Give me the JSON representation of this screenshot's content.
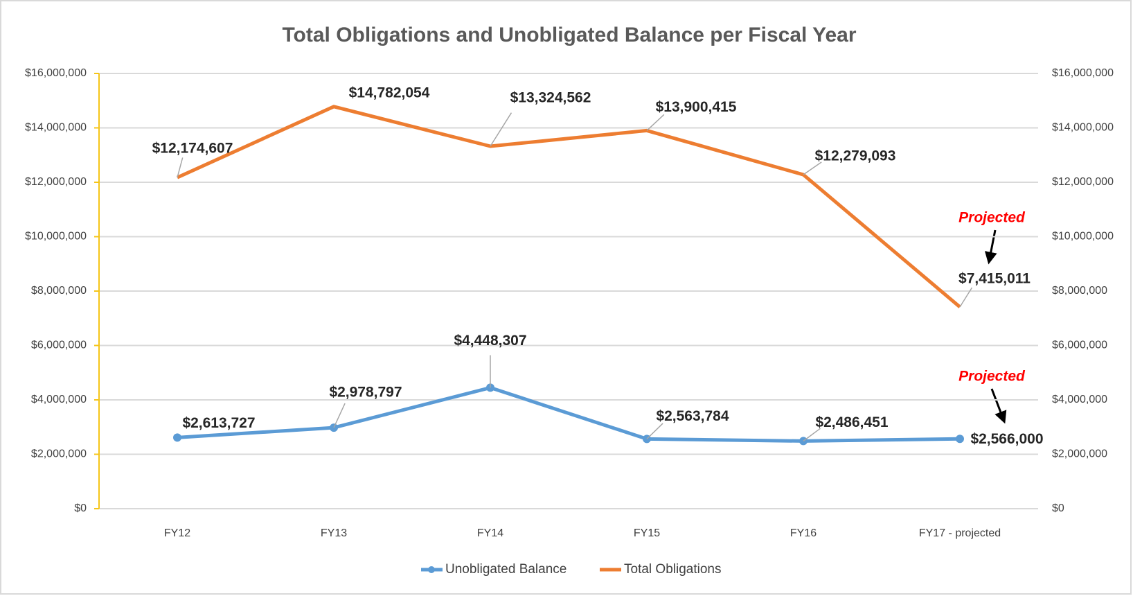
{
  "chart_data": {
    "type": "line",
    "title": "Total Obligations and Unobligated Balance per Fiscal Year",
    "categories": [
      "FY12",
      "FY13",
      "FY14",
      "FY15",
      "FY16",
      "FY17 - projected"
    ],
    "series": [
      {
        "name": "Unobligated Balance",
        "color": "#5b9bd5",
        "values": [
          2613727,
          2978797,
          4448307,
          2563784,
          2486451,
          2566000
        ],
        "value_labels": [
          "$2,613,727",
          "$2,978,797",
          "$4,448,307",
          "$2,563,784",
          "$2,486,451",
          "$2,566,000"
        ]
      },
      {
        "name": "Total Obligations",
        "color": "#ed7d31",
        "values": [
          12174607,
          14782054,
          13324562,
          13900415,
          12279093,
          7415011
        ],
        "value_labels": [
          "$12,174,607",
          "$14,782,054",
          "$13,324,562",
          "$13,900,415",
          "$12,279,093",
          "$7,415,011"
        ]
      }
    ],
    "ylim": [
      0,
      16000000
    ],
    "yticks": [
      {
        "value": 0,
        "label": "$0"
      },
      {
        "value": 2000000,
        "label": "$2,000,000"
      },
      {
        "value": 4000000,
        "label": "$4,000,000"
      },
      {
        "value": 6000000,
        "label": "$6,000,000"
      },
      {
        "value": 8000000,
        "label": "$8,000,000"
      },
      {
        "value": 10000000,
        "label": "$10,000,000"
      },
      {
        "value": 12000000,
        "label": "$12,000,000"
      },
      {
        "value": 14000000,
        "label": "$14,000,000"
      },
      {
        "value": 16000000,
        "label": "$16,000,000"
      }
    ],
    "y2lim": [
      0,
      16000000
    ],
    "y2ticks": [
      {
        "value": 0,
        "label": "$0"
      },
      {
        "value": 2000000,
        "label": "$2,000,000"
      },
      {
        "value": 4000000,
        "label": "$4,000,000"
      },
      {
        "value": 6000000,
        "label": "$6,000,000"
      },
      {
        "value": 8000000,
        "label": "$8,000,000"
      },
      {
        "value": 10000000,
        "label": "$10,000,000"
      },
      {
        "value": 12000000,
        "label": "$12,000,000"
      },
      {
        "value": 14000000,
        "label": "$14,000,000"
      },
      {
        "value": 16000000,
        "label": "$16,000,000"
      }
    ],
    "annotations": [
      "Projected",
      "Projected"
    ],
    "grid": true,
    "legend": "bottom"
  }
}
